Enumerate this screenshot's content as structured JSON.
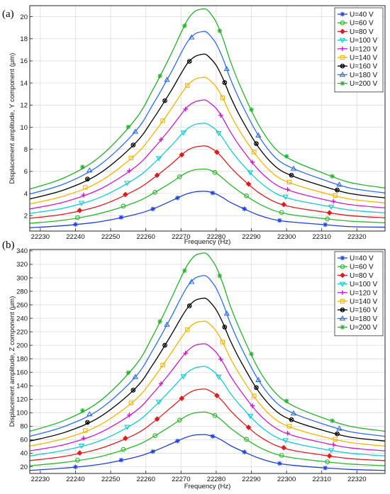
{
  "series_style": [
    {
      "color": "#1f3fd8",
      "marker": "star"
    },
    {
      "color": "#2bb52b",
      "marker": "circle"
    },
    {
      "color": "#e01b1b",
      "marker": "diamond"
    },
    {
      "color": "#17c9cf",
      "marker": "triangle-down"
    },
    {
      "color": "#c71ccf",
      "marker": "plus"
    },
    {
      "color": "#f2b500",
      "marker": "square"
    },
    {
      "color": "#000000",
      "marker": "circle-cross"
    },
    {
      "color": "#2f6cf0",
      "marker": "triangle-up"
    },
    {
      "color": "#25b02f",
      "marker": "star"
    }
  ],
  "chart_data": [
    {
      "panel_label": "(a)",
      "type": "line",
      "xlabel": "Frequency (Hz)",
      "ylabel": "Displacement amplitude, Y component (μm)",
      "xlim": [
        22227,
        22328
      ],
      "ylim": [
        0.6,
        21
      ],
      "xticks": [
        22230,
        22240,
        22250,
        22260,
        22270,
        22280,
        22290,
        22300,
        22310,
        22320
      ],
      "yticks": [
        2,
        4,
        6,
        8,
        10,
        12,
        14,
        16,
        18,
        20
      ],
      "grid": true,
      "legend_position": "top-right",
      "x": [
        22227,
        22237,
        22247,
        22257,
        22262,
        22267,
        22270,
        22272,
        22274,
        22276,
        22277,
        22278,
        22280,
        22282,
        22284,
        22287,
        22292,
        22297,
        22302,
        22310,
        22318,
        22328
      ],
      "series": [
        {
          "name": "U=40 V",
          "values": [
            0.9,
            1.1,
            1.45,
            2.1,
            2.6,
            3.3,
            3.75,
            4.0,
            4.15,
            4.2,
            4.2,
            4.15,
            3.95,
            3.6,
            3.2,
            2.75,
            2.05,
            1.6,
            1.4,
            1.2,
            1.0,
            0.95
          ]
        },
        {
          "name": "U=60 V",
          "values": [
            1.3,
            1.6,
            2.2,
            3.2,
            4.0,
            4.95,
            5.6,
            5.95,
            6.15,
            6.2,
            6.2,
            6.15,
            5.85,
            5.35,
            4.8,
            4.1,
            3.1,
            2.4,
            2.05,
            1.75,
            1.5,
            1.35
          ]
        },
        {
          "name": "U=80 V",
          "values": [
            1.75,
            2.15,
            2.9,
            4.3,
            5.35,
            6.6,
            7.45,
            7.95,
            8.2,
            8.3,
            8.3,
            8.2,
            7.8,
            7.15,
            6.4,
            5.45,
            4.1,
            3.2,
            2.75,
            2.35,
            2.0,
            1.8
          ]
        },
        {
          "name": "U=100 V",
          "values": [
            2.2,
            2.7,
            3.65,
            5.35,
            6.65,
            8.25,
            9.3,
            9.9,
            10.25,
            10.35,
            10.35,
            10.2,
            9.75,
            8.95,
            8.0,
            6.8,
            5.15,
            4.0,
            3.45,
            2.95,
            2.5,
            2.25
          ]
        },
        {
          "name": "U=120 V",
          "values": [
            2.6,
            3.25,
            4.4,
            6.4,
            8.0,
            9.9,
            11.15,
            11.9,
            12.3,
            12.45,
            12.45,
            12.25,
            11.7,
            10.75,
            9.6,
            8.15,
            6.15,
            4.8,
            4.15,
            3.5,
            3.0,
            2.7
          ]
        },
        {
          "name": "U=140 V",
          "values": [
            3.05,
            3.8,
            5.1,
            7.5,
            9.35,
            11.55,
            13.0,
            13.85,
            14.35,
            14.5,
            14.5,
            14.3,
            13.65,
            12.55,
            11.2,
            9.5,
            7.2,
            5.6,
            4.85,
            4.1,
            3.5,
            3.15
          ]
        },
        {
          "name": "U=160 V",
          "values": [
            3.5,
            4.35,
            5.85,
            8.55,
            10.7,
            13.2,
            14.85,
            15.85,
            16.4,
            16.6,
            16.6,
            16.35,
            15.6,
            14.35,
            12.8,
            10.85,
            8.2,
            6.4,
            5.55,
            4.7,
            4.0,
            3.6
          ]
        },
        {
          "name": "U=180 V",
          "values": [
            3.95,
            4.9,
            6.6,
            9.6,
            12.05,
            14.85,
            16.7,
            17.8,
            18.45,
            18.65,
            18.65,
            18.4,
            17.55,
            16.15,
            14.4,
            12.25,
            9.25,
            7.2,
            6.25,
            5.3,
            4.5,
            4.05
          ]
        },
        {
          "name": "U=200 V",
          "values": [
            4.4,
            5.45,
            7.35,
            10.7,
            13.4,
            16.5,
            18.55,
            19.8,
            20.5,
            20.7,
            20.7,
            20.45,
            19.5,
            17.95,
            16.0,
            13.6,
            10.25,
            8.0,
            6.95,
            5.9,
            5.0,
            4.5
          ]
        }
      ]
    },
    {
      "panel_label": "(b)",
      "type": "line",
      "xlabel": "Frequency (Hz)",
      "ylabel": "Displacement amplitude, Z component (μm)",
      "xlim": [
        22227,
        22328
      ],
      "ylim": [
        10,
        342
      ],
      "xticks": [
        22230,
        22240,
        22250,
        22260,
        22270,
        22280,
        22290,
        22300,
        22310,
        22320
      ],
      "yticks": [
        20,
        40,
        60,
        80,
        100,
        120,
        140,
        160,
        180,
        200,
        220,
        240,
        260,
        280,
        300,
        320,
        340
      ],
      "grid": true,
      "legend_position": "top-right",
      "x": [
        22227,
        22237,
        22247,
        22257,
        22262,
        22267,
        22270,
        22272,
        22274,
        22276,
        22277,
        22278,
        22280,
        22282,
        22284,
        22287,
        22292,
        22297,
        22302,
        22310,
        22318,
        22328
      ],
      "series": [
        {
          "name": "U=40 V",
          "values": [
            14.5,
            18.0,
            23.5,
            34.0,
            42.5,
            53.5,
            60.5,
            64.5,
            67.0,
            67.5,
            67.5,
            66.5,
            63.5,
            58.0,
            51.5,
            44.0,
            33.0,
            25.5,
            22.0,
            18.5,
            16.0,
            14.5
          ]
        },
        {
          "name": "U=60 V",
          "values": [
            21.5,
            26.5,
            35.0,
            51.0,
            64.0,
            80.0,
            90.5,
            96.5,
            100.0,
            101.0,
            101.0,
            99.5,
            95.0,
            87.0,
            77.5,
            66.0,
            49.5,
            38.5,
            33.0,
            28.0,
            24.0,
            21.5
          ]
        },
        {
          "name": "U=80 V",
          "values": [
            29.0,
            35.5,
            47.0,
            68.0,
            85.5,
            107.0,
            120.5,
            128.5,
            133.5,
            135.0,
            135.0,
            133.0,
            126.5,
            116.0,
            103.5,
            88.0,
            66.0,
            51.5,
            44.0,
            37.5,
            32.0,
            29.0
          ]
        },
        {
          "name": "U=100 V",
          "values": [
            36.0,
            44.5,
            58.5,
            85.0,
            107.0,
            133.5,
            150.5,
            160.5,
            166.5,
            168.5,
            168.5,
            166.0,
            158.0,
            145.0,
            129.0,
            110.0,
            82.5,
            64.0,
            55.0,
            46.5,
            40.0,
            36.0
          ]
        },
        {
          "name": "U=120 V",
          "values": [
            43.5,
            53.0,
            70.5,
            102.0,
            128.5,
            160.0,
            180.5,
            192.5,
            200.0,
            202.0,
            202.0,
            199.0,
            189.5,
            174.0,
            155.0,
            132.0,
            99.0,
            77.0,
            66.0,
            56.0,
            48.0,
            43.5
          ]
        },
        {
          "name": "U=140 V",
          "values": [
            50.5,
            62.0,
            82.0,
            119.0,
            150.0,
            187.0,
            210.5,
            224.5,
            233.0,
            235.5,
            235.5,
            232.5,
            221.0,
            203.0,
            181.0,
            154.0,
            115.5,
            89.5,
            77.0,
            65.0,
            56.0,
            50.5
          ]
        },
        {
          "name": "U=160 V",
          "values": [
            58.0,
            71.0,
            94.0,
            136.0,
            171.5,
            213.5,
            240.5,
            256.5,
            266.5,
            269.5,
            269.5,
            265.5,
            252.5,
            232.0,
            207.0,
            176.0,
            132.0,
            102.5,
            88.0,
            74.5,
            64.0,
            58.0
          ]
        },
        {
          "name": "U=180 V",
          "values": [
            65.0,
            80.0,
            105.5,
            153.0,
            193.0,
            240.0,
            270.5,
            288.5,
            299.5,
            303.0,
            303.0,
            299.0,
            284.5,
            261.0,
            233.0,
            198.0,
            148.5,
            115.5,
            99.0,
            84.0,
            72.0,
            65.0
          ]
        },
        {
          "name": "U=200 V",
          "values": [
            72.5,
            89.0,
            117.5,
            170.0,
            214.0,
            267.0,
            300.5,
            320.5,
            333.0,
            336.5,
            336.5,
            332.0,
            316.0,
            290.0,
            258.5,
            220.0,
            165.0,
            128.5,
            110.0,
            93.0,
            80.0,
            72.5
          ]
        }
      ]
    }
  ]
}
